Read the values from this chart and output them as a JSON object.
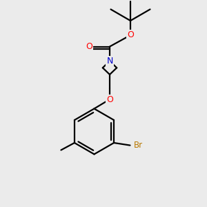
{
  "bg_color": "#ebebeb",
  "bond_color": "#000000",
  "bond_width": 1.6,
  "atom_colors": {
    "O": "#ff0000",
    "N": "#0000cc",
    "Br": "#b87800",
    "C": "#000000"
  }
}
